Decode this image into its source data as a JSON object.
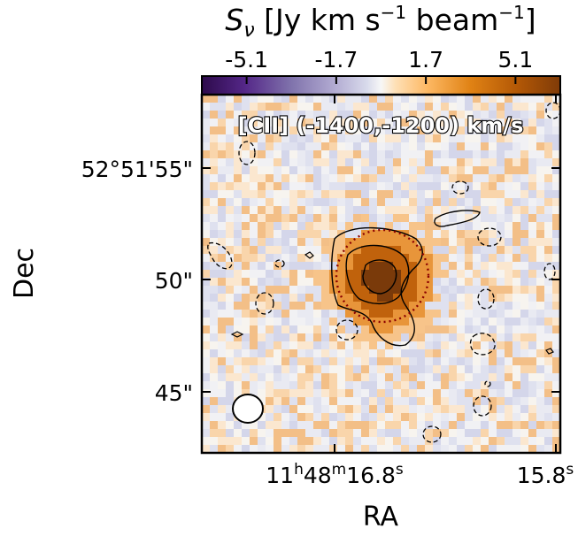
{
  "chart_data": {
    "type": "heatmap",
    "colorbar": {
      "label_symbol": "S",
      "label_subscript": "ν",
      "label_unit_a": " [Jy km s",
      "label_exp_a": "−1",
      "label_unit_b": " beam",
      "label_exp_b": "−1",
      "label_close": "]",
      "ticks": [
        -5.1,
        -1.7,
        1.7,
        5.1
      ],
      "tick_labels": [
        "-5.1",
        "-1.7",
        "1.7",
        "5.1"
      ],
      "range": [
        -6.8,
        6.8
      ],
      "colormap": "PuOr_r",
      "colors": {
        "low": "#2d0a4b",
        "mid": "#f7f7f7",
        "high": "#7f3b08"
      },
      "placement": "top"
    },
    "annotation": "[CII] (-1400,-1200) km/s",
    "xlabel": "RA",
    "ylabel": "Dec",
    "x_ticks": [
      {
        "h": "11",
        "h_sup": "h",
        "m": "48",
        "m_sup": "m",
        "s": "16.8",
        "s_sup": "s"
      },
      {
        "h": "",
        "h_sup": "",
        "m": "",
        "m_sup": "",
        "s": "15.8",
        "s_sup": "s"
      }
    ],
    "y_ticks": [
      "52°51'55\"",
      "50\"",
      "45\""
    ],
    "y_tick_values_arcsec": [
      55,
      50,
      45
    ],
    "ylim_arcsec": [
      42.3,
      58.0
    ],
    "source_peak": {
      "ra_offset_arcsec": 0,
      "dec_offset_arcsec": 0,
      "value": 6.2
    },
    "contours": {
      "positive_color": "#000000",
      "negative_color": "#000000",
      "negative_style": "dashed"
    },
    "aperture": {
      "style": "dotted",
      "color": "#8b0000",
      "radius_arcsec": 1.8
    },
    "beam": {
      "style": "ellipse",
      "color": "#000000",
      "fill": "#ffffff",
      "major_arcsec": 1.3,
      "minor_arcsec": 1.2
    }
  }
}
